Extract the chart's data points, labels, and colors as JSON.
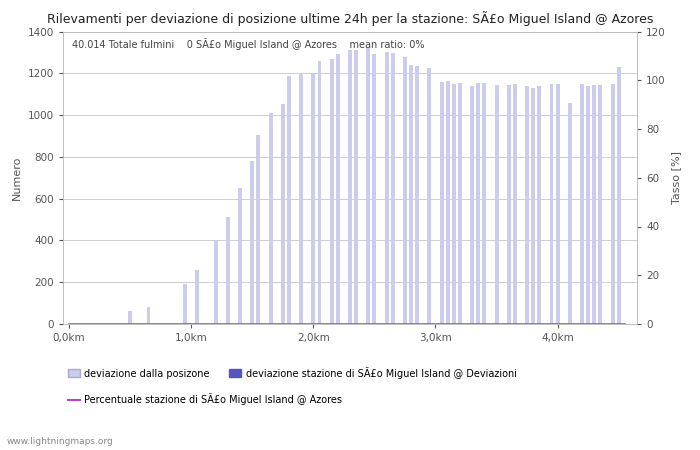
{
  "title": "Rilevamenti per deviazione di posizione ultime 24h per la stazione: SÃ£o Miguel Island @ Azores",
  "subtitle": "40.014 Totale fulmini    0 SÃ£o Miguel Island @ Azores    mean ratio: 0%",
  "ylabel_left": "Numero",
  "ylabel_right": "Tasso [%]",
  "watermark": "www.lightningmaps.org",
  "legend_entries": [
    "deviazione dalla posizone",
    "deviazione stazione di SÃ£o Miguel Island @ Deviazioni",
    "Percentuale stazione di SÃ£o Miguel Island @ Azores"
  ],
  "bar_color_light": "#ccccee",
  "bar_color_dark": "#5555bb",
  "line_color": "#bb44bb",
  "x_positions": [
    0.05,
    0.1,
    0.15,
    0.2,
    0.25,
    0.3,
    0.35,
    0.4,
    0.45,
    0.5,
    0.55,
    0.6,
    0.65,
    0.7,
    0.75,
    0.8,
    0.85,
    0.9,
    0.95,
    1.0,
    1.05,
    1.1,
    1.15,
    1.2,
    1.25,
    1.3,
    1.35,
    1.4,
    1.45,
    1.5,
    1.55,
    1.6,
    1.65,
    1.7,
    1.75,
    1.8,
    1.85,
    1.9,
    1.95,
    2.0,
    2.05,
    2.1,
    2.15,
    2.2,
    2.25,
    2.3,
    2.35,
    2.4,
    2.45,
    2.5,
    2.55,
    2.6,
    2.65,
    2.7,
    2.75,
    2.8,
    2.85,
    2.9,
    2.95,
    3.0,
    3.05,
    3.1,
    3.15,
    3.2,
    3.25,
    3.3,
    3.35,
    3.4,
    3.45,
    3.5,
    3.55,
    3.6,
    3.65,
    3.7,
    3.75,
    3.8,
    3.85,
    3.9,
    3.95,
    4.0,
    4.05,
    4.1,
    4.15,
    4.2,
    4.25,
    4.3,
    4.35,
    4.4,
    4.45,
    4.5
  ],
  "bar_heights": [
    0,
    0,
    0,
    0,
    0,
    0,
    0,
    0,
    0,
    60,
    0,
    0,
    80,
    0,
    0,
    0,
    0,
    0,
    190,
    0,
    260,
    0,
    0,
    400,
    0,
    510,
    0,
    650,
    0,
    780,
    905,
    0,
    1010,
    0,
    1055,
    1185,
    0,
    1200,
    0,
    1195,
    1260,
    0,
    1270,
    1290,
    0,
    1310,
    1310,
    0,
    1320,
    1290,
    0,
    1300,
    1295,
    0,
    1280,
    1240,
    1235,
    0,
    1225,
    0,
    1160,
    1165,
    1150,
    1155,
    0,
    1140,
    1155,
    1155,
    0,
    1145,
    0,
    1145,
    1150,
    0,
    1140,
    1130,
    1140,
    0,
    1150,
    1150,
    0,
    1060,
    0,
    1150,
    1140,
    1145,
    1145,
    0,
    1150,
    1230
  ],
  "ylim_left": [
    0,
    1400
  ],
  "ylim_right": [
    0,
    120
  ],
  "xtick_positions": [
    0.0,
    1.0,
    2.0,
    3.0,
    4.0
  ],
  "xtick_labels": [
    "0,0km",
    "1,0km",
    "2,0km",
    "3,0km",
    "4,0km"
  ],
  "ytick_left": [
    0,
    200,
    400,
    600,
    800,
    1000,
    1200,
    1400
  ],
  "ytick_right": [
    0,
    20,
    40,
    60,
    80,
    100,
    120
  ],
  "grid_color": "#bbbbbb",
  "background_color": "#ffffff",
  "bar_width": 0.032,
  "xlim": [
    -0.05,
    4.65
  ]
}
